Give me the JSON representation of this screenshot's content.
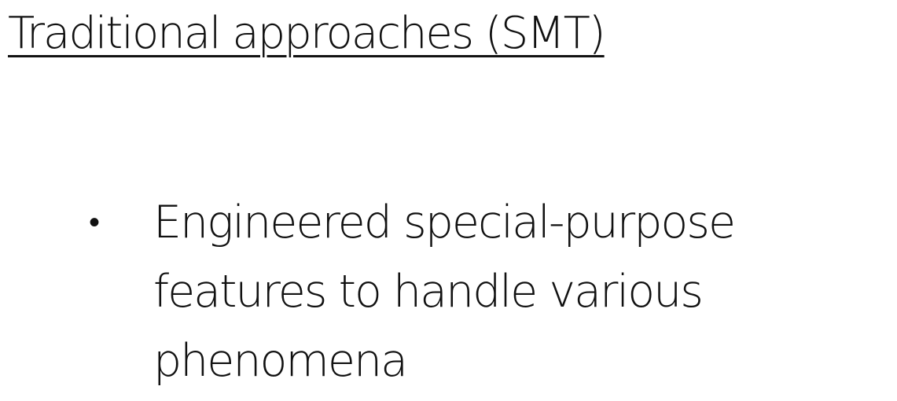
{
  "slide": {
    "title": "Traditional approaches (SMT)",
    "bullets": [
      {
        "marker": "•",
        "lines": [
          "Engineered special-purpose",
          "features to handle various",
          "phenomena"
        ]
      }
    ]
  }
}
